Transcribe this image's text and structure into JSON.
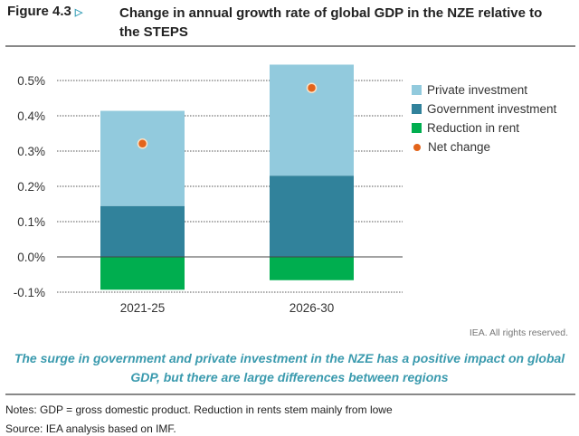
{
  "figure_label": "Figure 4.3",
  "title": "Change in annual growth rate of global GDP in the NZE relative to the STEPS",
  "chart_data": {
    "type": "bar",
    "stacked": true,
    "categories": [
      "2021-25",
      "2026-30"
    ],
    "series": [
      {
        "name": "Private investment",
        "values": [
          0.27,
          0.315
        ],
        "color": "#92cadd"
      },
      {
        "name": "Government investment",
        "values": [
          0.144,
          0.23
        ],
        "color": "#31829b"
      },
      {
        "name": "Reduction in rent",
        "values": [
          -0.093,
          -0.066
        ],
        "color": "#00ae4f"
      }
    ],
    "net_change": {
      "name": "Net change",
      "values": [
        0.321,
        0.479
      ],
      "color": "#e3641b"
    },
    "ylim": [
      -0.1,
      0.5
    ],
    "yticks": [
      -0.1,
      0,
      0.1,
      0.2,
      0.3,
      0.4,
      0.5
    ],
    "ytick_labels": [
      "-0.1%",
      "0.0%",
      "0.1%",
      "0.2%",
      "0.3%",
      "0.4%",
      "0.5%"
    ],
    "grid": true,
    "legend_placement": "right"
  },
  "rights": "IEA. All rights reserved.",
  "caption": "The surge in government and private investment in the NZE has a positive impact on global GDP, but there are large differences between regions",
  "notes": "Notes: GDP = gross domestic product. Reduction in rents stem mainly from lowe",
  "source": "Source: IEA analysis based on IMF."
}
